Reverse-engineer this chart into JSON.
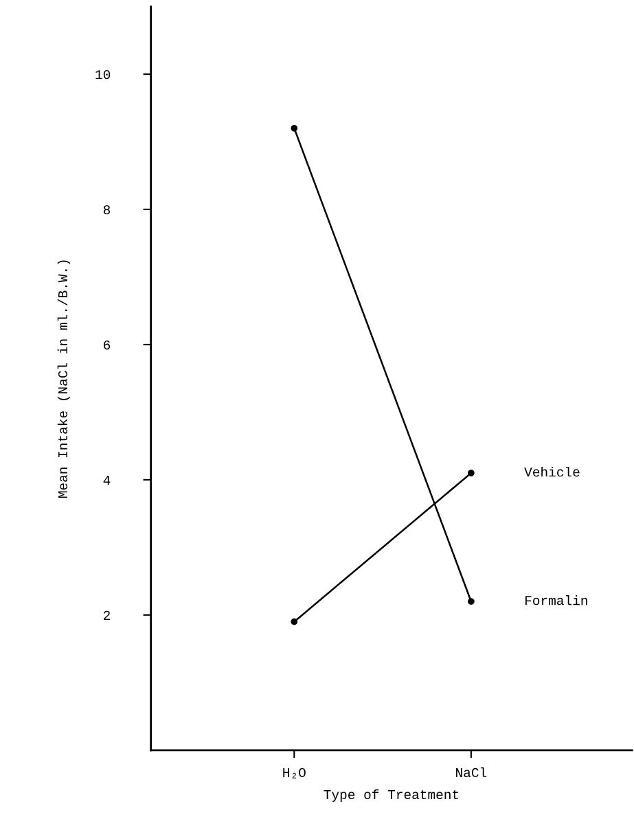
{
  "chart_data": {
    "type": "line",
    "xlabel": "Type of Treatment",
    "ylabel": "Mean Intake (NaCl in ml./B.W.)",
    "categories": [
      "H₂O",
      "NaCl"
    ],
    "series": [
      {
        "name": "Formalin",
        "color": "#000000",
        "values": [
          9.2,
          2.2
        ]
      },
      {
        "name": "Vehicle",
        "color": "#000000",
        "values": [
          1.9,
          4.1
        ]
      }
    ],
    "ylim": [
      0,
      11
    ],
    "yticks": [
      2,
      4,
      6,
      8,
      10
    ],
    "grid": false,
    "legend": false,
    "marker": "circle",
    "line_style": "solid"
  }
}
